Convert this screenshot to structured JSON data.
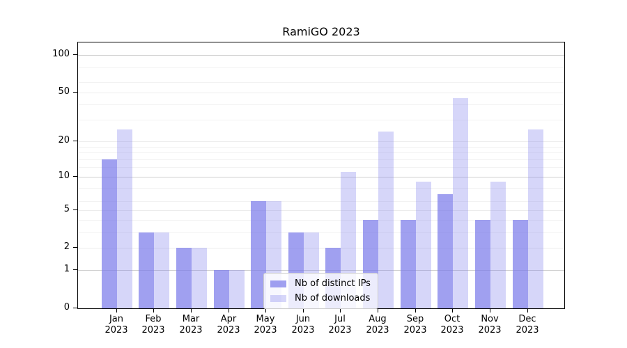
{
  "chart_data": {
    "type": "bar",
    "title": "RamiGO 2023",
    "categories": [
      "Jan 2023",
      "Feb 2023",
      "Mar 2023",
      "Apr 2023",
      "May 2023",
      "Jun 2023",
      "Jul 2023",
      "Aug 2023",
      "Sep 2023",
      "Oct 2023",
      "Nov 2023",
      "Dec 2023"
    ],
    "series": [
      {
        "name": "Nb of distinct IPs",
        "color": "#a5a5f0",
        "fill": "rgba(120,120,234,0.70)",
        "values": [
          14,
          3,
          2,
          1,
          6,
          3,
          2,
          4,
          4,
          7,
          4,
          4
        ]
      },
      {
        "name": "Nb of downloads",
        "color": "#d9d9f6",
        "fill": "rgba(120,120,234,0.30)",
        "values": [
          25,
          3,
          2,
          1,
          6,
          3,
          11,
          24,
          9,
          45,
          9,
          25
        ]
      }
    ],
    "yscale": "log1p",
    "yticks": [
      0,
      1,
      2,
      5,
      10,
      20,
      50,
      100
    ],
    "minor_gridlines": [
      3,
      4,
      6,
      8,
      12,
      14,
      16,
      18,
      30,
      40,
      60,
      80
    ],
    "ylim": [
      0,
      125
    ],
    "xlabel": "",
    "ylabel": "",
    "grid": "horizontal",
    "legend_position": "lower center",
    "grid_colors": {
      "decade": "#d0d0d0",
      "labeled": "#ececec",
      "minor": "#f2f2f2"
    }
  }
}
